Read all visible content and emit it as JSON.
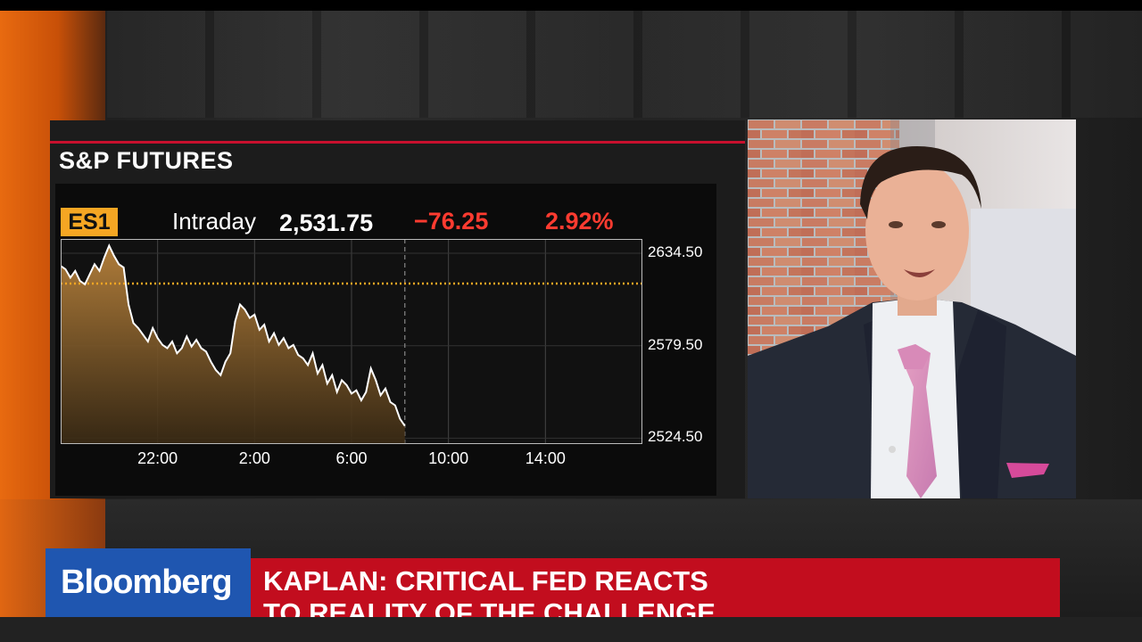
{
  "chart": {
    "title": "S&P FUTURES",
    "ticker": "ES1",
    "period": "Intraday",
    "last": "2,531.75",
    "change": "−76.25",
    "change_pct": "2.92%",
    "colors": {
      "accent_red": "#c8102e",
      "negative": "#ff3b30",
      "ticker_bg": "#f5a623",
      "reference_line": "#f5a623",
      "line": "#ffffff"
    }
  },
  "chart_data": {
    "type": "area",
    "title": "S&P FUTURES",
    "ylim": [
      2521,
      2643
    ],
    "y_ticks": [
      "2634.50",
      "2579.50",
      "2524.50"
    ],
    "y_tick_values": [
      2634.5,
      2579.5,
      2524.5
    ],
    "x_ticks": [
      "22:00",
      "2:00",
      "6:00",
      "10:00",
      "14:00"
    ],
    "x_tick_hours": [
      4,
      8,
      12,
      16,
      20
    ],
    "reference_level": 2616.5,
    "current_time_hour": 14.2,
    "grid": true,
    "series": [
      {
        "x": [
          0,
          0.2,
          0.4,
          0.6,
          0.8,
          1.0,
          1.2,
          1.4,
          1.6,
          1.8,
          2.0,
          2.2,
          2.4,
          2.6,
          2.8,
          3.0,
          3.2,
          3.4,
          3.6,
          3.8,
          4.0,
          4.2,
          4.4,
          4.6,
          4.8,
          5.0,
          5.2,
          5.4,
          5.6,
          5.8,
          6.0,
          6.2,
          6.4,
          6.6,
          6.8,
          7.0,
          7.2,
          7.4,
          7.6,
          7.8,
          8.0,
          8.2,
          8.4,
          8.6,
          8.8,
          9.0,
          9.2,
          9.4,
          9.6,
          9.8,
          10.0,
          10.2,
          10.4,
          10.6,
          10.8,
          11.0,
          11.2,
          11.4,
          11.6,
          11.8,
          12.0,
          12.2,
          12.4,
          12.6,
          12.8,
          13.0,
          13.2,
          13.4,
          13.6,
          13.8,
          14.0,
          14.2
        ],
        "values": [
          2627,
          2625,
          2620,
          2624,
          2618,
          2616,
          2622,
          2628,
          2624,
          2632,
          2639,
          2633,
          2628,
          2626,
          2604,
          2593,
          2590,
          2586,
          2582,
          2590,
          2584,
          2580,
          2578,
          2582,
          2575,
          2578,
          2585,
          2579,
          2583,
          2578,
          2576,
          2570,
          2565,
          2562,
          2570,
          2575,
          2594,
          2604,
          2601,
          2596,
          2598,
          2589,
          2592,
          2582,
          2587,
          2580,
          2584,
          2578,
          2580,
          2574,
          2572,
          2568,
          2575,
          2563,
          2568,
          2557,
          2562,
          2552,
          2559,
          2556,
          2551,
          2553,
          2547,
          2552,
          2566,
          2559,
          2550,
          2554,
          2546,
          2544,
          2536,
          2531.75
        ]
      }
    ]
  },
  "lower_third": {
    "network": "Bloomberg",
    "headline_line1": "KAPLAN: CRITICAL FED REACTS",
    "headline_line2": "TO REALITY OF THE CHALLENGE"
  }
}
